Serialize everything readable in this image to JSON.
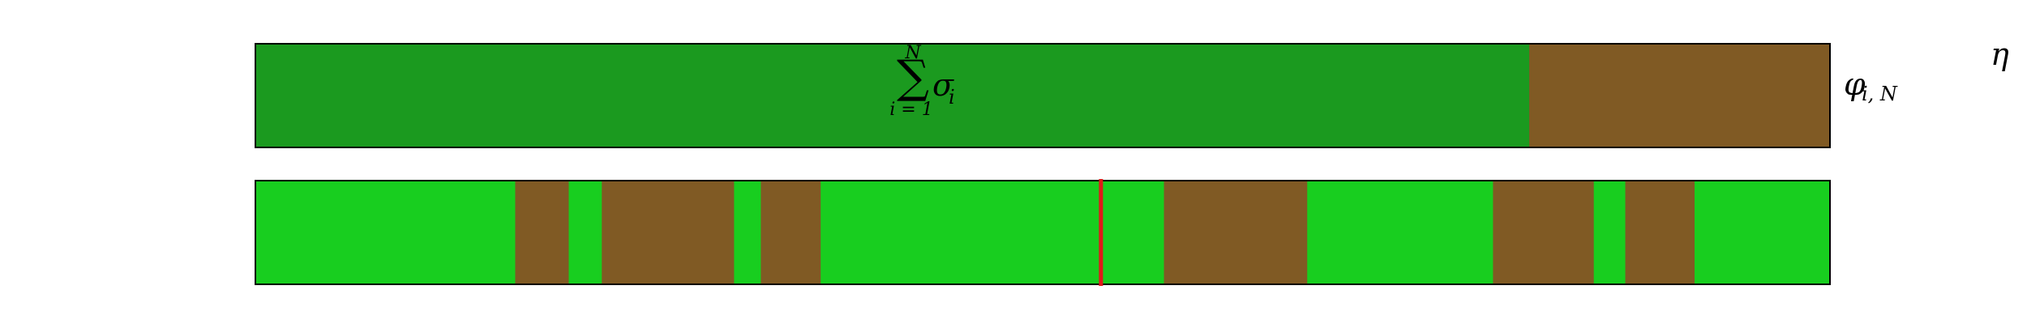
{
  "colors": {
    "top_primary": "#1b9a1f",
    "top_secondary": "#805a24",
    "bottom_primary": "#18ce1f",
    "bottom_secondary": "#805a24",
    "marker": "#e01919",
    "outline": "#000000"
  },
  "top_bar": {
    "total_units": 1000,
    "segments": [
      {
        "kind": "green",
        "length": 809
      },
      {
        "kind": "brown",
        "length": 191
      }
    ],
    "center_label": {
      "operator": "∑",
      "term": "σ",
      "term_sub": "i",
      "upper": "N",
      "lower": "i = 1"
    },
    "side_label": {
      "symbol": "φ",
      "subscript": "i, N"
    }
  },
  "bottom_bar": {
    "total_units": 1000,
    "segments": [
      {
        "kind": "green",
        "length": 165
      },
      {
        "kind": "brown",
        "length": 34
      },
      {
        "kind": "green",
        "length": 21
      },
      {
        "kind": "brown",
        "length": 84
      },
      {
        "kind": "green",
        "length": 17
      },
      {
        "kind": "brown",
        "length": 38
      },
      {
        "kind": "green",
        "length": 177
      },
      {
        "kind": "green",
        "length": 41
      },
      {
        "kind": "brown",
        "length": 91
      },
      {
        "kind": "green",
        "length": 118
      },
      {
        "kind": "brown",
        "length": 64
      },
      {
        "kind": "green",
        "length": 20
      },
      {
        "kind": "brown",
        "length": 44
      },
      {
        "kind": "green",
        "length": 86
      }
    ],
    "marker_position": 0.537
  },
  "corner_label": "η"
}
